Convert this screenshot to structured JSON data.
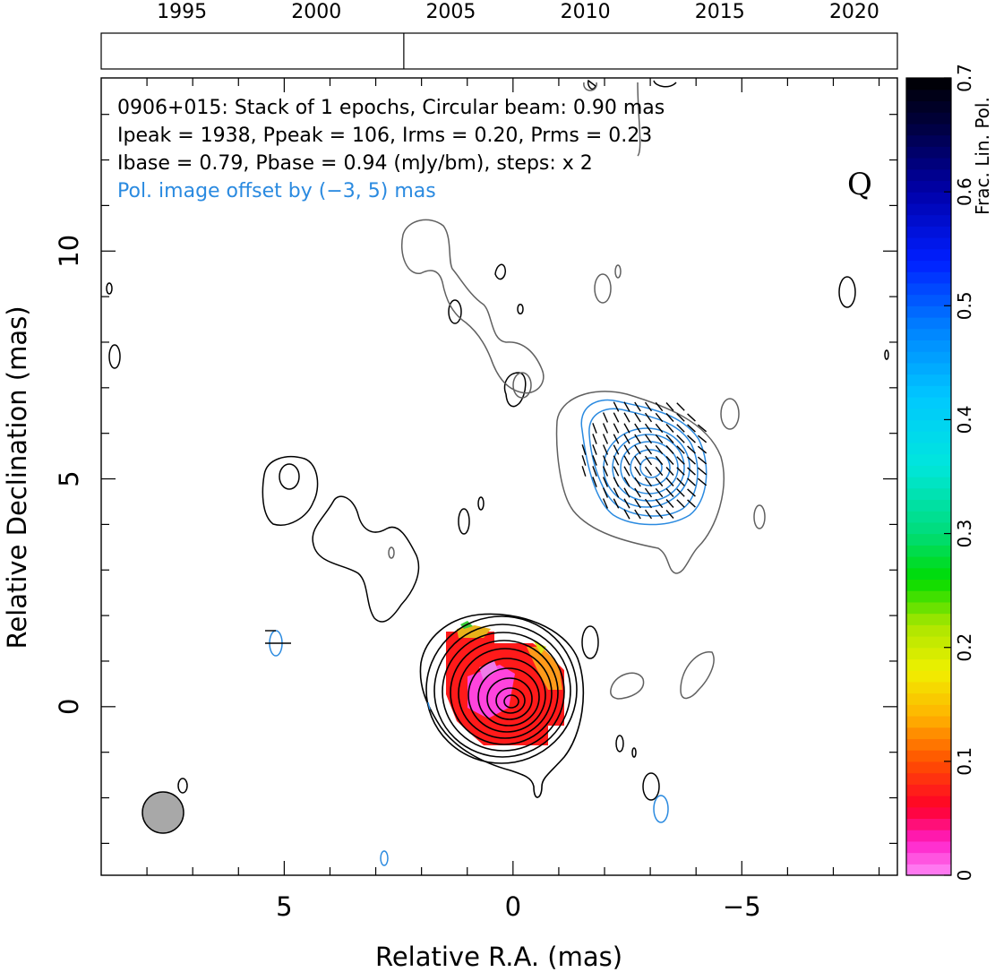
{
  "chart_data": {
    "type": "contour-map",
    "object": "0906+015",
    "band_letter": "Q",
    "annotations": {
      "line1": "0906+015: Stack of 1 epochs, Circular beam: 0.90 mas",
      "line2": "Ipeak = 1938, Ppeak = 106, Irms = 0.20, Prms = 0.23",
      "line3": "Ibase = 0.79, Pbase = 0.94 (mJy/bm), steps: x 2",
      "line4": "Pol. image offset by (−3, 5) mas"
    },
    "xlabel": "Relative R.A. (mas)",
    "ylabel": "Relative Declination (mas)",
    "xlim": [
      9.0,
      -8.4
    ],
    "ylim": [
      -3.7,
      13.8
    ],
    "x_ticks": [
      {
        "value": 5,
        "label": "5"
      },
      {
        "value": 0,
        "label": "0"
      },
      {
        "value": -5,
        "label": "−5"
      }
    ],
    "y_ticks": [
      {
        "value": 0,
        "label": "0"
      },
      {
        "value": 5,
        "label": "5"
      },
      {
        "value": 10,
        "label": "10"
      }
    ],
    "timeline": {
      "range": [
        1992.0,
        2021.6
      ],
      "tick_labels": [
        "1995",
        "2000",
        "2005",
        "2010",
        "2015",
        "2020"
      ],
      "tick_values": [
        1995,
        2000,
        2005,
        2010,
        2015,
        2020
      ],
      "epochs": [
        2003.25
      ]
    },
    "colorbar": {
      "label": "Frac. Lin. Pol.",
      "range": [
        0,
        0.7
      ],
      "tick_labels": [
        "0",
        "0.1",
        "0.2",
        "0.3",
        "0.4",
        "0.5",
        "0.6",
        "0.7"
      ],
      "tick_values": [
        0,
        0.1,
        0.2,
        0.3,
        0.4,
        0.5,
        0.6,
        0.7
      ]
    },
    "beam": {
      "diameter_mas": 0.9
    },
    "colors": {
      "stokes_i_contours": "#000000",
      "polarized_contours": "#2a8ae0",
      "lowest_contour": "#606060",
      "beam_fill": "#a8a8a8",
      "annotation_offset_text": "#2a8ae0"
    }
  }
}
